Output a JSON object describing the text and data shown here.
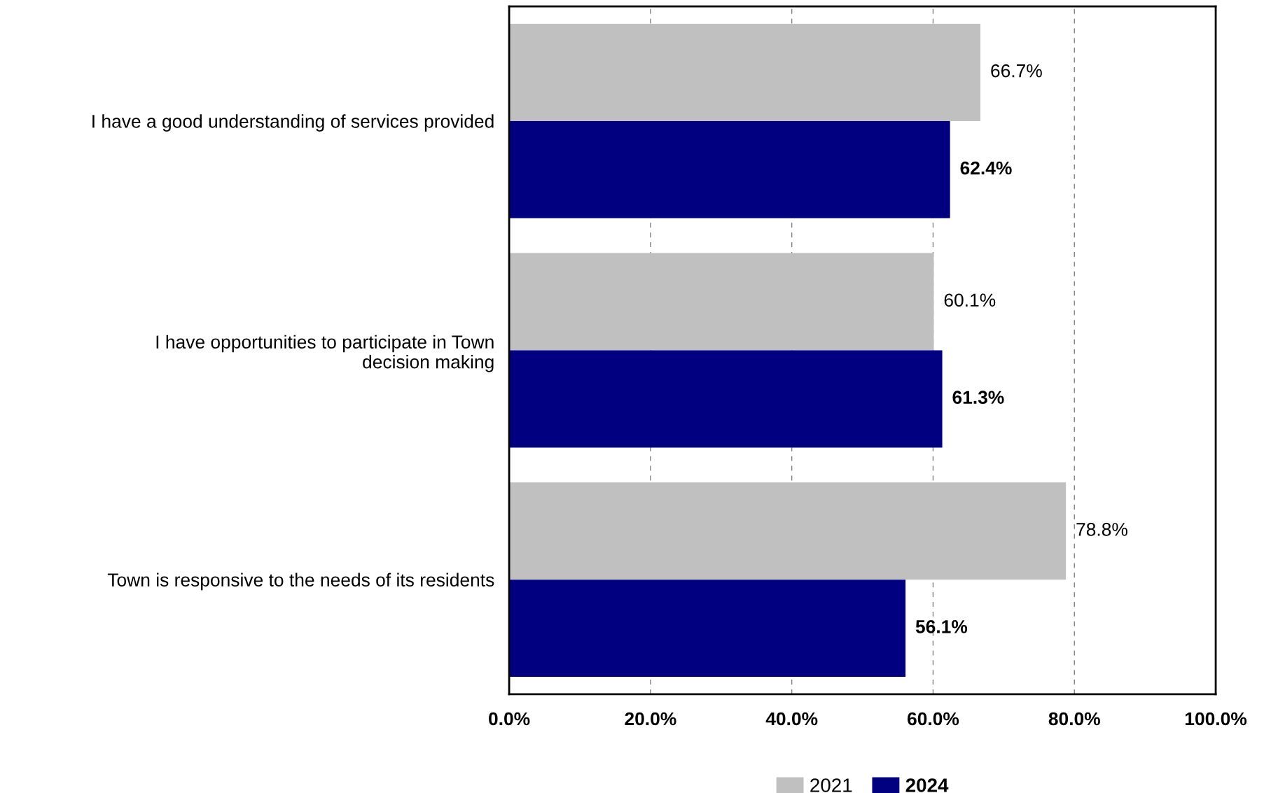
{
  "chart_data": {
    "type": "bar",
    "orientation": "horizontal",
    "categories": [
      "I have a good understanding of services provided",
      "I have opportunities to participate in Town\ndecision making",
      "Town is responsive to the needs of its residents"
    ],
    "series": [
      {
        "name": "2021",
        "color": "#c0c0c0",
        "values": [
          66.7,
          60.1,
          78.8
        ],
        "value_labels": [
          "66.7%",
          "60.1%",
          "78.8%"
        ]
      },
      {
        "name": "2024",
        "color": "#000080",
        "values": [
          62.4,
          61.3,
          56.1
        ],
        "value_labels": [
          "62.4%",
          "61.3%",
          "56.1%"
        ]
      }
    ],
    "xlim": [
      0,
      100
    ],
    "xticks": [
      {
        "value": 0,
        "label": "0.0%"
      },
      {
        "value": 20,
        "label": "20.0%"
      },
      {
        "value": 40,
        "label": "40.0%"
      },
      {
        "value": 60,
        "label": "60.0%"
      },
      {
        "value": 80,
        "label": "80.0%"
      },
      {
        "value": 100,
        "label": "100.0%"
      }
    ],
    "grid": "x",
    "legend": "bottom"
  }
}
